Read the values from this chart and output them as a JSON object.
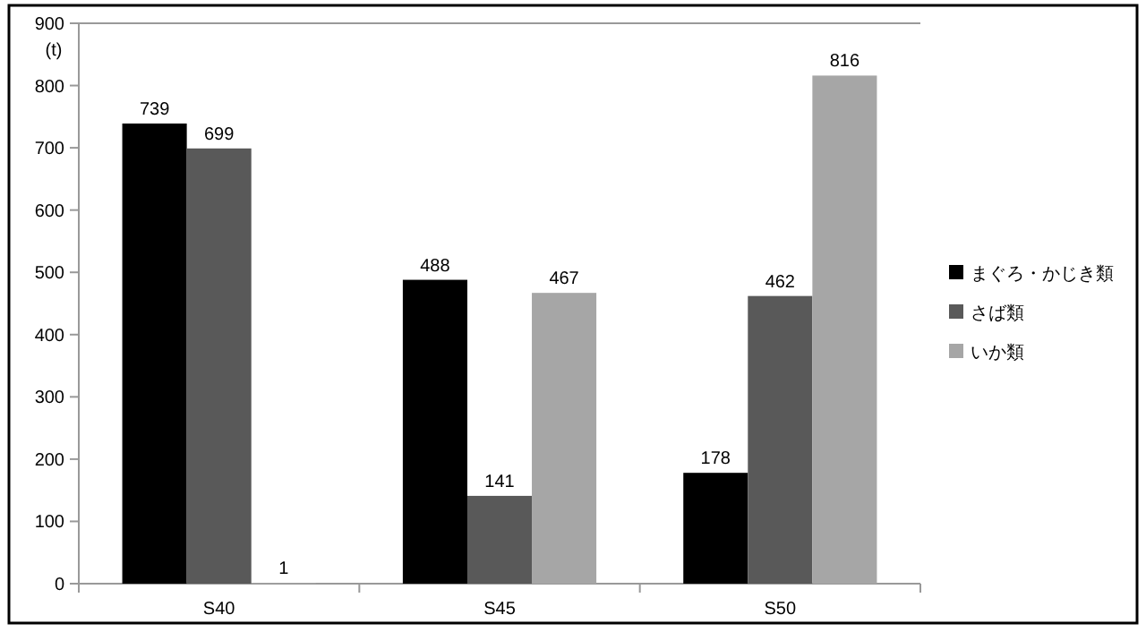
{
  "chart_data": {
    "type": "bar",
    "ylabel": "(t)",
    "categories": [
      "S40",
      "S45",
      "S50"
    ],
    "series": [
      {
        "name": "まぐろ・かじき類",
        "color": "#000000",
        "values": [
          739,
          488,
          178
        ]
      },
      {
        "name": "さば類",
        "color": "#595959",
        "values": [
          699,
          141,
          462
        ]
      },
      {
        "name": "いか類",
        "color": "#a6a6a6",
        "values": [
          1,
          467,
          816
        ]
      }
    ],
    "ylim": [
      0,
      900
    ],
    "yticks": [
      0,
      100,
      200,
      300,
      400,
      500,
      600,
      700,
      800,
      900
    ],
    "data_labels": true,
    "legend": "right"
  }
}
